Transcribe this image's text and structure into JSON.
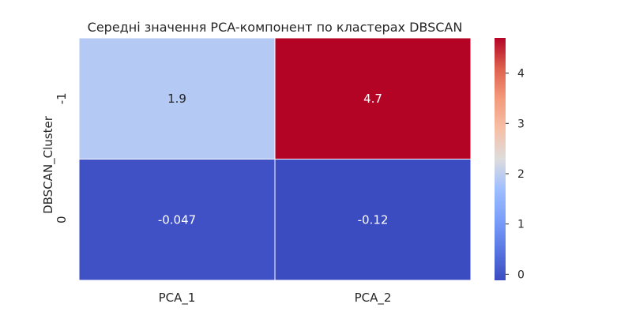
{
  "chart_data": {
    "type": "heatmap",
    "title": "Середні значення PCA-компонент по кластерах DBSCAN",
    "xlabel": "",
    "ylabel": "DBSCAN_Cluster",
    "x_categories": [
      "PCA_1",
      "PCA_2"
    ],
    "y_categories": [
      "-1",
      "0"
    ],
    "values": [
      [
        1.9,
        4.7
      ],
      [
        -0.047,
        -0.12
      ]
    ],
    "value_labels": [
      [
        "1.9",
        "4.7"
      ],
      [
        "-0.047",
        "-0.12"
      ]
    ],
    "colormap": "coolwarm",
    "vmin": -0.12,
    "vmax": 4.7,
    "colorbar": {
      "ticks": [
        0,
        1,
        2,
        3,
        4
      ],
      "tick_labels": [
        "0",
        "1",
        "2",
        "3",
        "4"
      ],
      "placement": "right"
    },
    "grid": false
  }
}
